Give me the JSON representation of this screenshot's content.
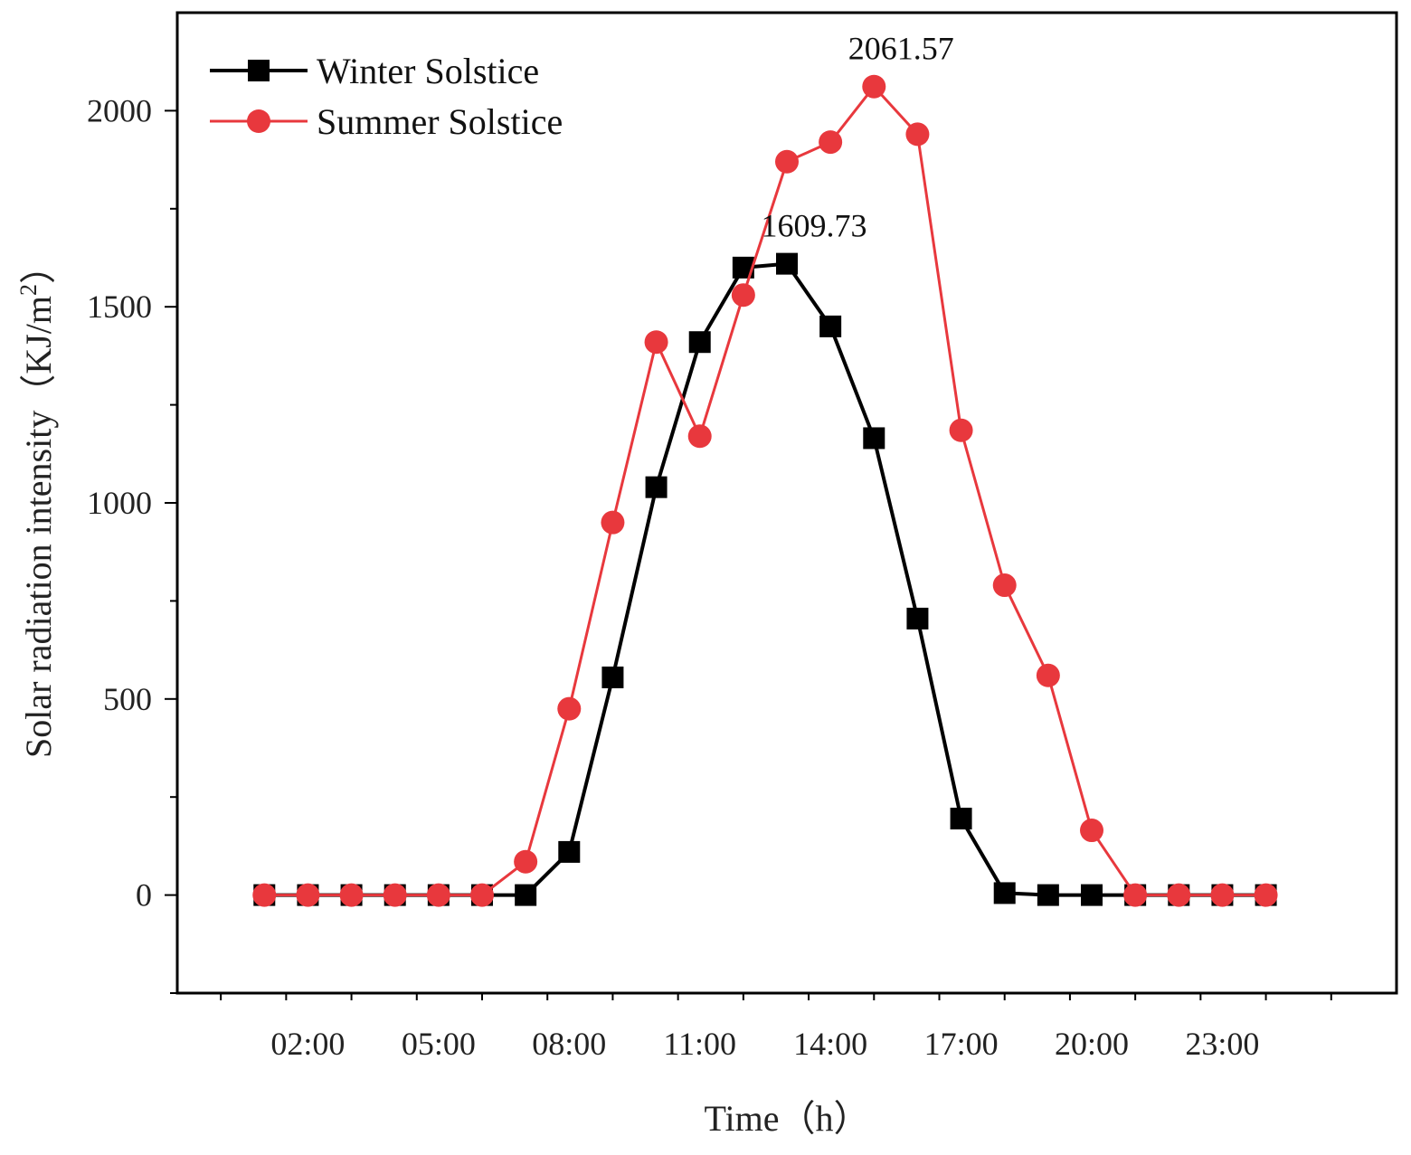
{
  "chart_data": {
    "type": "line",
    "title": "",
    "xlabel": "Time（h）",
    "ylabel_main": "Solar radiation intensity（KJ/m",
    "ylabel_sup": "2",
    "ylabel_close": "）",
    "x": [
      1,
      2,
      3,
      4,
      5,
      6,
      7,
      8,
      9,
      10,
      11,
      12,
      13,
      14,
      15,
      16,
      17,
      18,
      19,
      20,
      21,
      22,
      23,
      24
    ],
    "xlim": [
      -1,
      27
    ],
    "x_tick_values": [
      2,
      5,
      8,
      11,
      14,
      17,
      20,
      23
    ],
    "x_tick_labels": [
      "02:00",
      "05:00",
      "08:00",
      "11:00",
      "14:00",
      "17:00",
      "20:00",
      "23:00"
    ],
    "ylim": [
      -250,
      2250
    ],
    "y_ticks": [
      0,
      500,
      1000,
      1500,
      2000
    ],
    "series": [
      {
        "name": "Winter Solstice",
        "color": "#000000",
        "marker": "square",
        "values": [
          0,
          0,
          0,
          0,
          0,
          0,
          0,
          110,
          555,
          1040,
          1410,
          1600,
          1609.73,
          1450,
          1165,
          705,
          195,
          5,
          0,
          0,
          0,
          0,
          0,
          0
        ]
      },
      {
        "name": "Summer Solstice",
        "color": "#e8383d",
        "marker": "circle",
        "values": [
          0,
          0,
          0,
          0,
          0,
          0,
          85,
          475,
          950,
          1410,
          1170,
          1530,
          1870,
          1920,
          2061.57,
          1940,
          1185,
          790,
          560,
          165,
          0,
          0,
          0,
          0
        ]
      }
    ],
    "annotations": [
      {
        "text": "2061.57",
        "x": 15,
        "y": 2061.57,
        "series": "Summer Solstice"
      },
      {
        "text": "1609.73",
        "x": 13,
        "y": 1609.73,
        "series": "Winter Solstice"
      }
    ],
    "legend_position": "top-left",
    "grid": false
  }
}
